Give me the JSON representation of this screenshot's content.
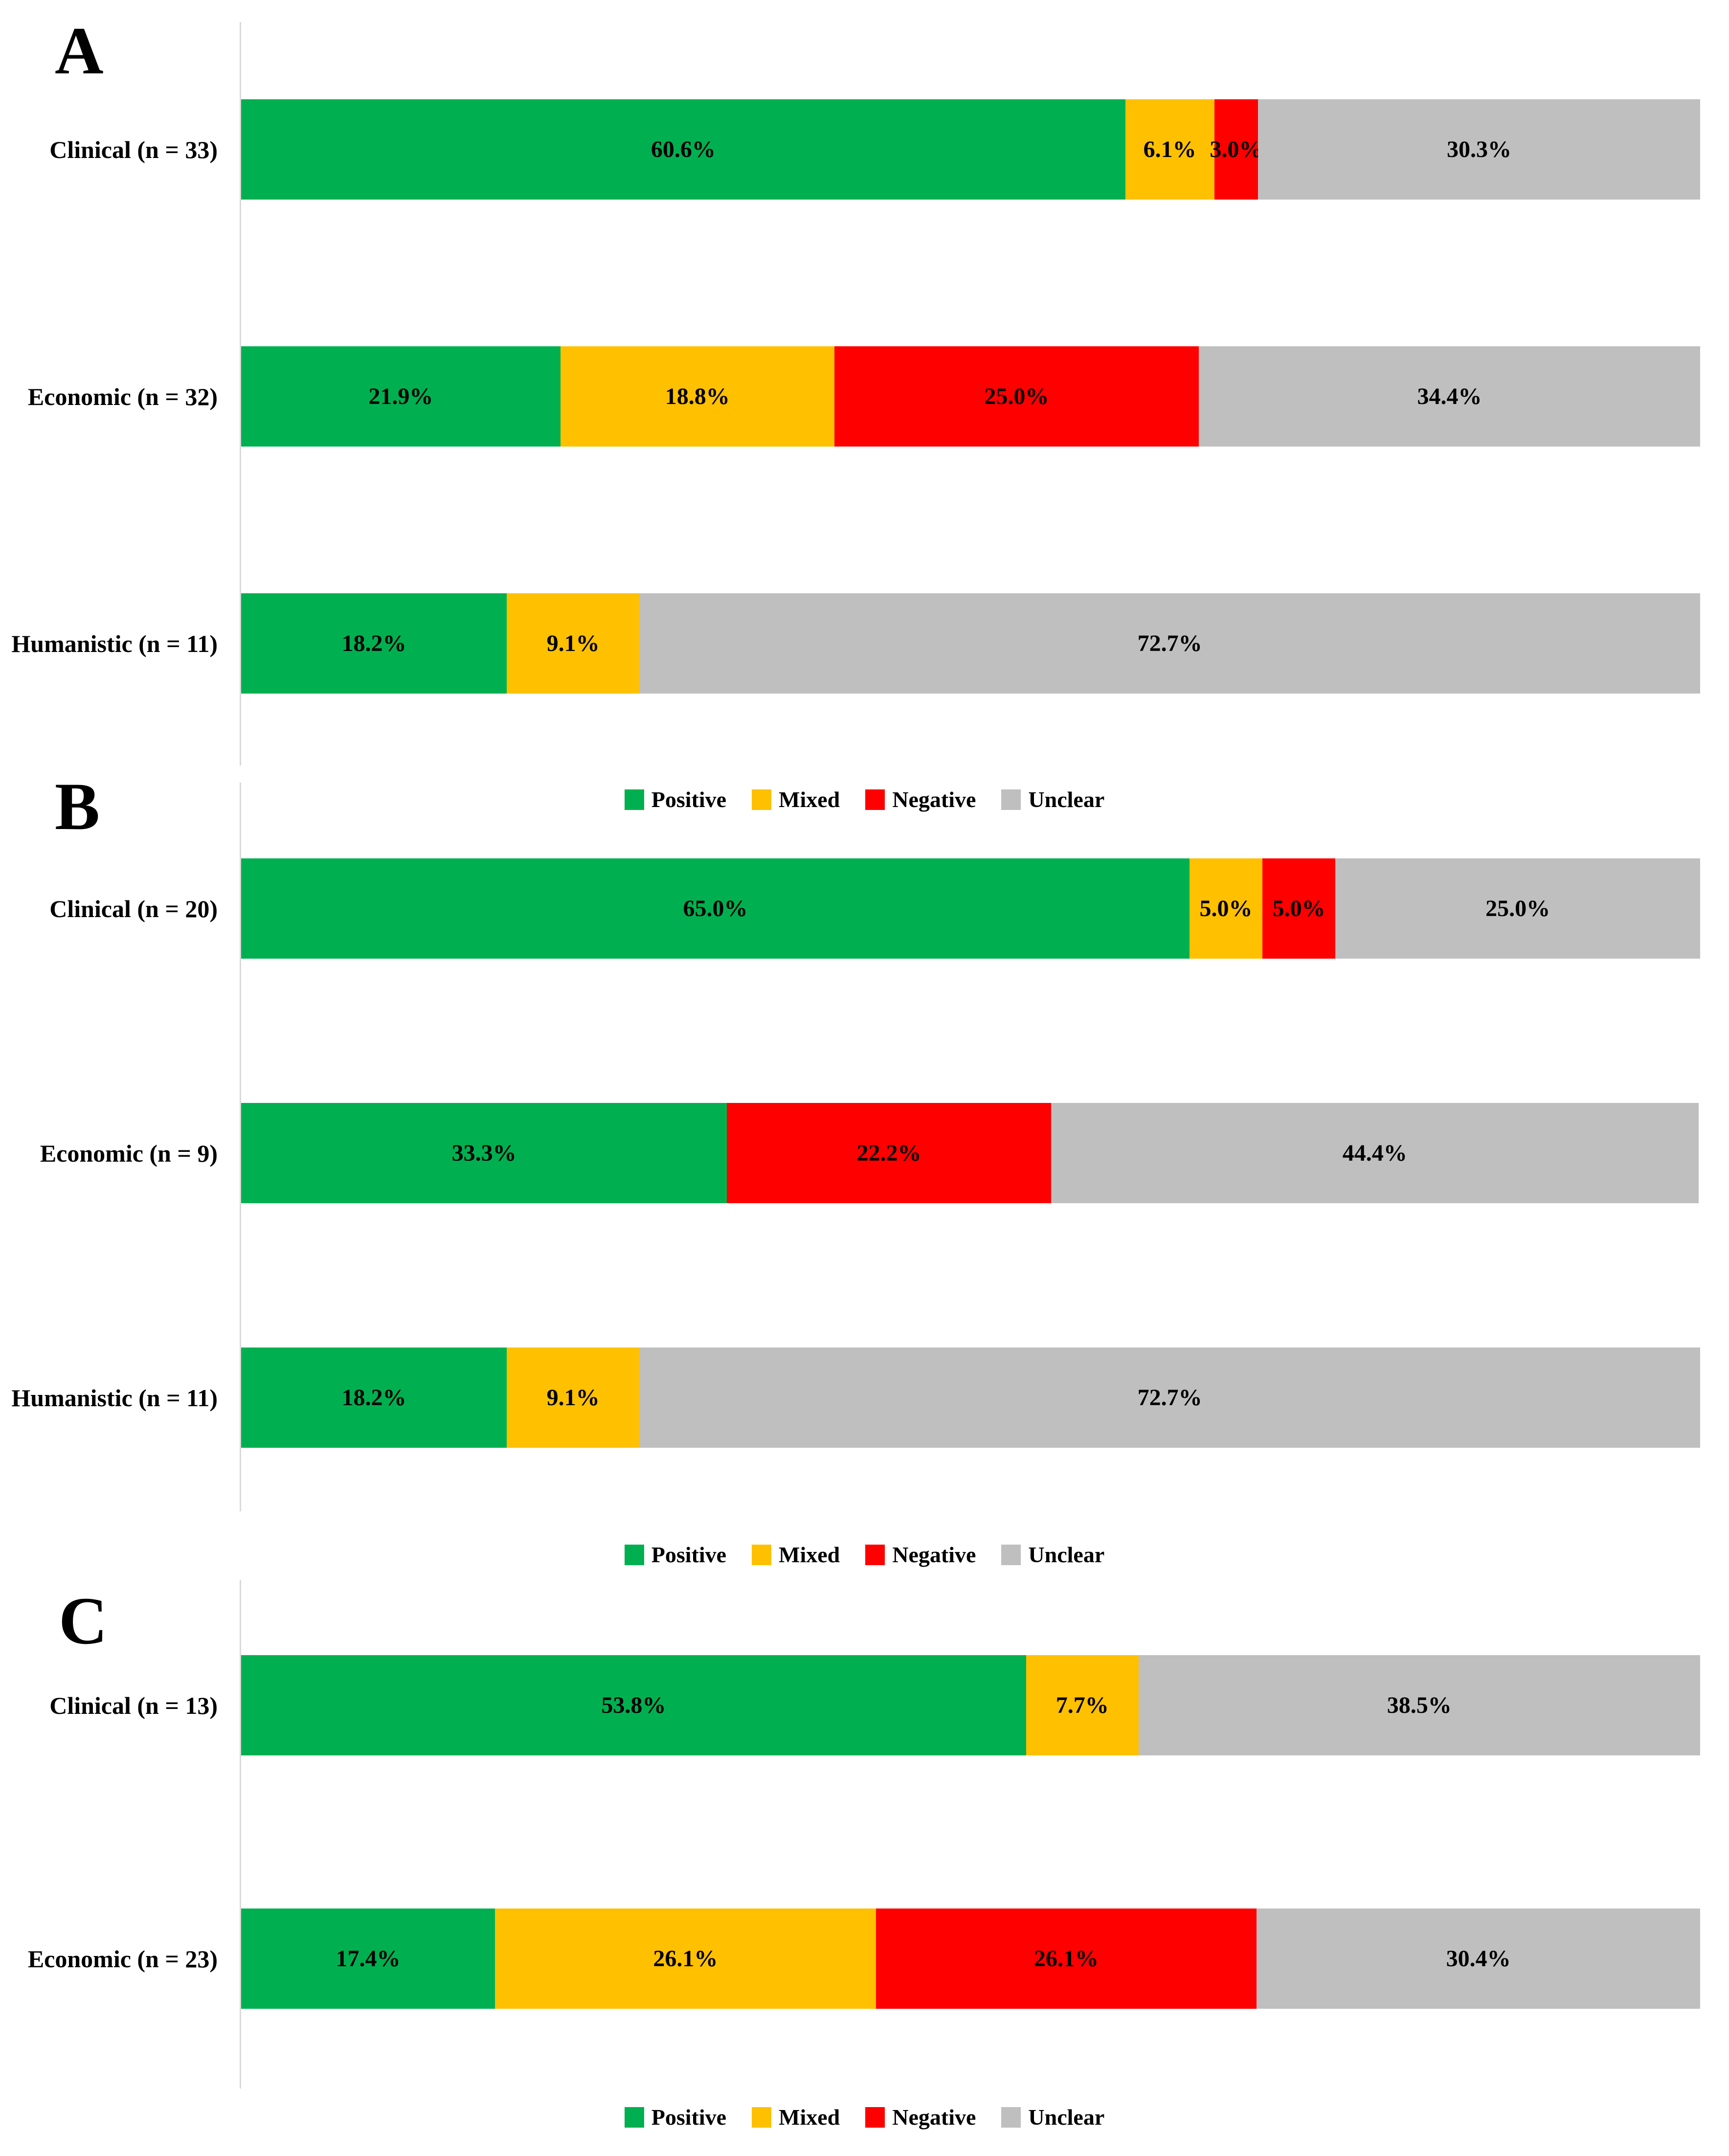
{
  "figure": {
    "colors": {
      "Positive": "#00B050",
      "Mixed": "#FFC000",
      "Negative": "#FF0000",
      "Unclear": "#BFBFBF"
    },
    "axis_color": "#D9D9D9",
    "legend_items": [
      "Positive",
      "Mixed",
      "Negative",
      "Unclear"
    ]
  },
  "chart_data": [
    {
      "panel": "A",
      "type": "bar",
      "orientation": "horizontal",
      "stacked": true,
      "unit": "%",
      "xlim": [
        0,
        100
      ],
      "grid": false,
      "legend_position": "bottom-center",
      "legend": [
        "Positive",
        "Mixed",
        "Negative",
        "Unclear"
      ],
      "categories": [
        "Clinical (n = 33)",
        "Economic (n = 32)",
        "Humanistic (n = 11)"
      ],
      "rows": [
        {
          "category": "Clinical (n = 33)",
          "segments": [
            {
              "name": "Positive",
              "value": 60.6,
              "label": "60.6%"
            },
            {
              "name": "Mixed",
              "value": 6.1,
              "label": "6.1%"
            },
            {
              "name": "Negative",
              "value": 3.0,
              "label": "3.0%"
            },
            {
              "name": "Unclear",
              "value": 30.3,
              "label": "30.3%"
            }
          ]
        },
        {
          "category": "Economic (n = 32)",
          "segments": [
            {
              "name": "Positive",
              "value": 21.9,
              "label": "21.9%"
            },
            {
              "name": "Mixed",
              "value": 18.8,
              "label": "18.8%"
            },
            {
              "name": "Negative",
              "value": 25.0,
              "label": "25.0%"
            },
            {
              "name": "Unclear",
              "value": 34.4,
              "label": "34.4%"
            }
          ]
        },
        {
          "category": "Humanistic (n = 11)",
          "segments": [
            {
              "name": "Positive",
              "value": 18.2,
              "label": "18.2%"
            },
            {
              "name": "Mixed",
              "value": 9.1,
              "label": "9.1%"
            },
            {
              "name": "Unclear",
              "value": 72.7,
              "label": "72.7%"
            }
          ]
        }
      ]
    },
    {
      "panel": "B",
      "type": "bar",
      "orientation": "horizontal",
      "stacked": true,
      "unit": "%",
      "xlim": [
        0,
        100
      ],
      "grid": false,
      "legend_position": "bottom-center",
      "legend": [
        "Positive",
        "Mixed",
        "Negative",
        "Unclear"
      ],
      "categories": [
        "Clinical (n = 20)",
        "Economic (n = 9)",
        "Humanistic (n = 11)"
      ],
      "rows": [
        {
          "category": "Clinical (n = 20)",
          "segments": [
            {
              "name": "Positive",
              "value": 65.0,
              "label": "65.0%"
            },
            {
              "name": "Mixed",
              "value": 5.0,
              "label": "5.0%"
            },
            {
              "name": "Negative",
              "value": 5.0,
              "label": "5.0%"
            },
            {
              "name": "Unclear",
              "value": 25.0,
              "label": "25.0%"
            }
          ]
        },
        {
          "category": "Economic (n = 9)",
          "segments": [
            {
              "name": "Positive",
              "value": 33.3,
              "label": "33.3%"
            },
            {
              "name": "Negative",
              "value": 22.2,
              "label": "22.2%"
            },
            {
              "name": "Unclear",
              "value": 44.4,
              "label": "44.4%"
            }
          ]
        },
        {
          "category": "Humanistic (n = 11)",
          "segments": [
            {
              "name": "Positive",
              "value": 18.2,
              "label": "18.2%"
            },
            {
              "name": "Mixed",
              "value": 9.1,
              "label": "9.1%"
            },
            {
              "name": "Unclear",
              "value": 72.7,
              "label": "72.7%"
            }
          ]
        }
      ]
    },
    {
      "panel": "C",
      "type": "bar",
      "orientation": "horizontal",
      "stacked": true,
      "unit": "%",
      "xlim": [
        0,
        100
      ],
      "grid": false,
      "legend_position": "bottom-center",
      "legend": [
        "Positive",
        "Mixed",
        "Negative",
        "Unclear"
      ],
      "categories": [
        "Clinical (n = 13)",
        "Economic (n = 23)"
      ],
      "rows": [
        {
          "category": "Clinical (n = 13)",
          "segments": [
            {
              "name": "Positive",
              "value": 53.8,
              "label": "53.8%"
            },
            {
              "name": "Mixed",
              "value": 7.7,
              "label": "7.7%"
            },
            {
              "name": "Unclear",
              "value": 38.5,
              "label": "38.5%"
            }
          ]
        },
        {
          "category": "Economic (n = 23)",
          "segments": [
            {
              "name": "Positive",
              "value": 17.4,
              "label": "17.4%"
            },
            {
              "name": "Mixed",
              "value": 26.1,
              "label": "26.1%"
            },
            {
              "name": "Negative",
              "value": 26.1,
              "label": "26.1%"
            },
            {
              "name": "Unclear",
              "value": 30.4,
              "label": "30.4%"
            }
          ]
        }
      ]
    }
  ]
}
